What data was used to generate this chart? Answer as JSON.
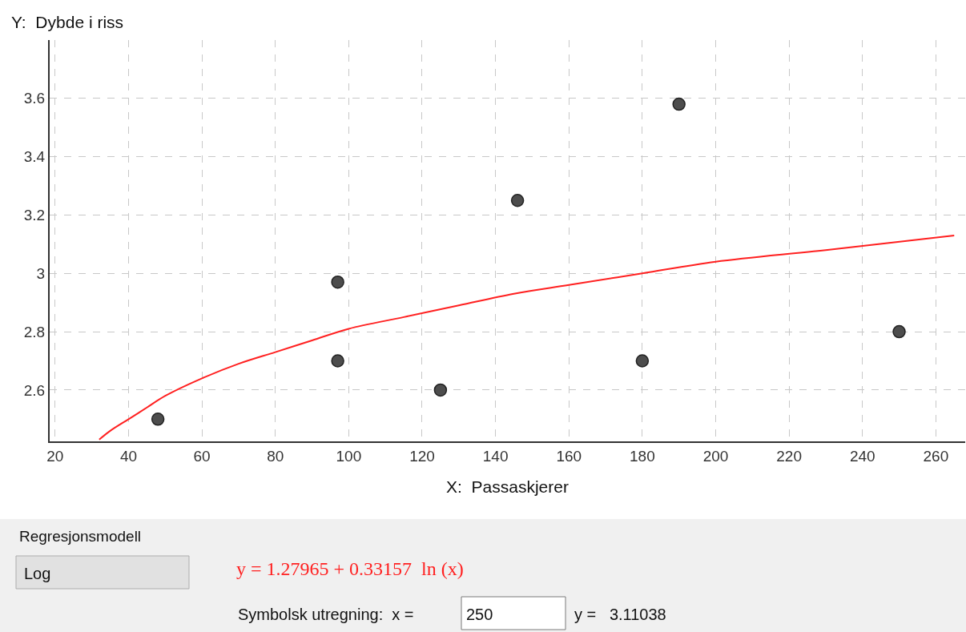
{
  "chart_data": {
    "type": "scatter",
    "xlabel": "X:  Passaskjerer",
    "ylabel": "Y:  Dybde i riss",
    "series": [
      {
        "color": "#4d4d4d",
        "marker": "circle",
        "x": [
          48,
          97,
          97,
          125,
          146,
          180,
          190,
          250
        ],
        "values": [
          2.5,
          2.97,
          2.7,
          2.6,
          3.25,
          2.7,
          3.58,
          2.8
        ]
      },
      {
        "type": "line",
        "color": "#ff2020",
        "marker": "none",
        "line_style": "solid",
        "x": [
          32,
          35,
          40,
          45,
          50,
          60,
          70,
          80,
          90,
          100,
          115,
          130,
          145,
          160,
          180,
          200,
          230,
          265
        ],
        "values": [
          2.43,
          2.46,
          2.5,
          2.54,
          2.58,
          2.64,
          2.69,
          2.73,
          2.77,
          2.81,
          2.85,
          2.89,
          2.93,
          2.96,
          3.0,
          3.04,
          3.08,
          3.13
        ]
      }
    ],
    "xlim": [
      18.5,
      268
    ],
    "xticks": [
      20,
      40,
      60,
      80,
      100,
      120,
      140,
      160,
      180,
      200,
      220,
      240,
      260
    ],
    "ylim": [
      2.424,
      3.8
    ],
    "yticks": [
      2.6,
      2.8,
      3,
      3.2,
      3.4,
      3.6
    ],
    "grid": true,
    "annotations": [
      "Regresjonsmodell",
      "Log",
      "y = 1.27965 + 0.33157  ln (x)",
      "Symbolsk utregning:  x =",
      "250",
      "y =   3.11038"
    ]
  }
}
